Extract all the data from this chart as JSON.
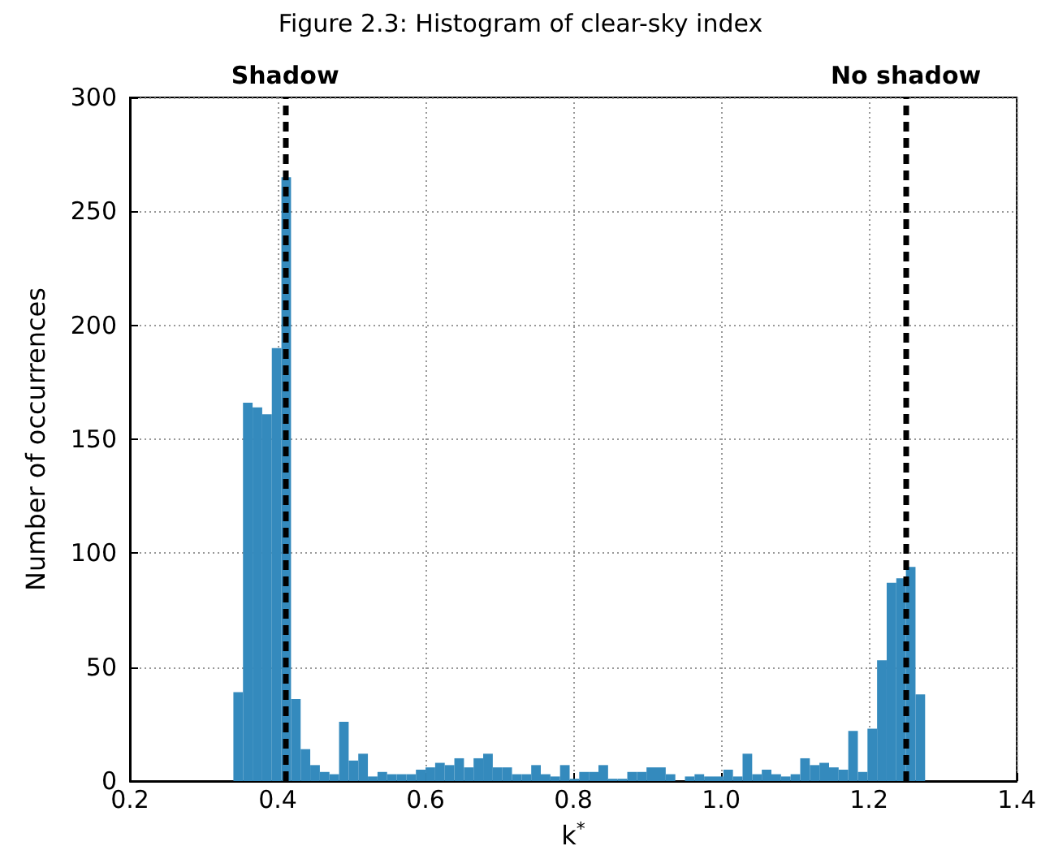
{
  "chart_data": {
    "type": "histogram",
    "title": "Figure 2.3: Histogram of clear-sky index",
    "xlabel": "k$^{*}$",
    "ylabel": "Number of occurrences",
    "bins": [
      0.34,
      0.353,
      0.366,
      0.379,
      0.392,
      0.405,
      0.418,
      0.431,
      0.444,
      0.457,
      0.47,
      0.483,
      0.496,
      0.509,
      0.522,
      0.535,
      0.548,
      0.561,
      0.574,
      0.587,
      0.6,
      0.613,
      0.626,
      0.639,
      0.652,
      0.665,
      0.678,
      0.691,
      0.704,
      0.717,
      0.73,
      0.743,
      0.756,
      0.769,
      0.782,
      0.795,
      0.808,
      0.821,
      0.834,
      0.847,
      0.86,
      0.873,
      0.886,
      0.899,
      0.912,
      0.925,
      0.938,
      0.951,
      0.964,
      0.977,
      0.99,
      1.003,
      1.016,
      1.029,
      1.042,
      1.055,
      1.068,
      1.081,
      1.094,
      1.107,
      1.12,
      1.133,
      1.146,
      1.159,
      1.172,
      1.185,
      1.198,
      1.211,
      1.224,
      1.237,
      1.25,
      1.263,
      1.276
    ],
    "values": [
      39,
      166,
      164,
      161,
      190,
      265,
      36,
      14,
      7,
      4,
      3,
      26,
      9,
      12,
      2,
      4,
      3,
      3,
      3,
      5,
      6,
      8,
      7,
      10,
      6,
      10,
      12,
      6,
      6,
      3,
      3,
      7,
      3,
      2,
      7,
      1,
      4,
      4,
      7,
      1,
      1,
      4,
      4,
      6,
      6,
      3,
      0,
      2,
      3,
      2,
      2,
      5,
      2,
      12,
      3,
      5,
      3,
      2,
      3,
      10,
      7,
      8,
      6,
      5,
      22,
      4,
      23,
      53,
      87,
      89,
      94,
      38
    ],
    "color": "#348abd",
    "xlim": [
      0.2,
      1.4
    ],
    "xticks": [
      0.2,
      0.4,
      0.6,
      0.8,
      {
        "value": 1,
        "label": "1.0"
      },
      1.2,
      1.4
    ],
    "ylim": [
      0,
      300
    ],
    "yticks": [
      0,
      50,
      100,
      150,
      200,
      250,
      300
    ],
    "grid": true,
    "ref_lines": [
      {
        "axis": "x",
        "value": 0.41,
        "label": "Shadow",
        "color": "#000000",
        "line_style": "dashed"
      },
      {
        "axis": "x",
        "value": 1.253,
        "label": "No shadow",
        "color": "#000000",
        "line_style": "dashed"
      }
    ]
  }
}
